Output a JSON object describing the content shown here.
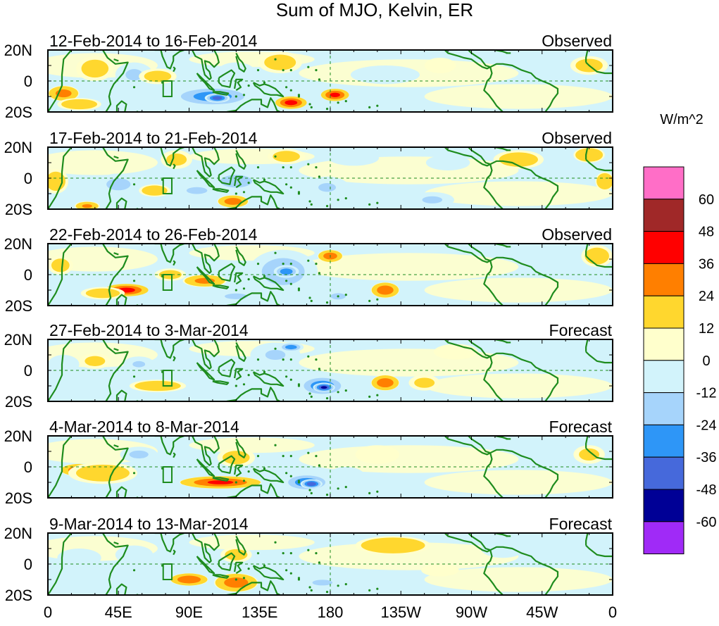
{
  "chart_data": {
    "type": "heatmap",
    "title": "Sum of MJO, Kelvin, ER",
    "units_label": "W/m^2",
    "y_ticks": [
      "20N",
      "0",
      "20S"
    ],
    "x_ticks": [
      "0",
      "45E",
      "90E",
      "135E",
      "180",
      "135W",
      "90W",
      "45W",
      "0"
    ],
    "x_range_deg": [
      0,
      360
    ],
    "y_range_deg": [
      -20,
      20
    ],
    "colorbar": {
      "levels": [
        60,
        48,
        36,
        24,
        12,
        0,
        -12,
        -24,
        -36,
        -48,
        -60
      ],
      "labels": [
        "60",
        "48",
        "36",
        "24",
        "12",
        "0",
        "-12",
        "-24",
        "-36",
        "-48",
        "-60"
      ],
      "colors": [
        "#ff6ec7",
        "#a02828",
        "#ff0000",
        "#ff7f00",
        "#ffd72e",
        "#ffffcc",
        "#d2f3fb",
        "#a6d4fb",
        "#2e96f7",
        "#4669db",
        "#000096",
        "#a02af7"
      ]
    },
    "colors": {
      "coast": "#1e8c1e",
      "dashed": "#1e8c1e",
      "background": "#d2f3fb"
    },
    "panels": [
      {
        "period": "12-Feb-2014 to 16-Feb-2014",
        "status": "Observed",
        "anomalies": [
          {
            "lon": 10,
            "lat": -8,
            "v": 28,
            "rx": 10,
            "ry": 5
          },
          {
            "lon": 20,
            "lat": -15,
            "v": 18,
            "rx": 14,
            "ry": 4
          },
          {
            "lon": 30,
            "lat": 8,
            "v": 14,
            "rx": 12,
            "ry": 8
          },
          {
            "lon": 55,
            "lat": 4,
            "v": -26,
            "rx": 12,
            "ry": 8
          },
          {
            "lon": 70,
            "lat": 3,
            "v": 14,
            "rx": 12,
            "ry": 5
          },
          {
            "lon": 105,
            "lat": -10,
            "v": -42,
            "rx": 28,
            "ry": 7
          },
          {
            "lon": 108,
            "lat": -11,
            "v": -55,
            "rx": 8,
            "ry": 3
          },
          {
            "lon": 120,
            "lat": 6,
            "v": -22,
            "rx": 12,
            "ry": 6
          },
          {
            "lon": 148,
            "lat": 12,
            "v": 14,
            "rx": 14,
            "ry": 7
          },
          {
            "lon": 155,
            "lat": -14,
            "v": 40,
            "rx": 10,
            "ry": 4
          },
          {
            "lon": 183,
            "lat": -9,
            "v": 38,
            "rx": 9,
            "ry": 4
          },
          {
            "lon": 215,
            "lat": 4,
            "v": -12,
            "rx": 22,
            "ry": 6
          },
          {
            "lon": 250,
            "lat": 10,
            "v": 10,
            "rx": 10,
            "ry": 5
          },
          {
            "lon": 345,
            "lat": 10,
            "v": 14,
            "rx": 12,
            "ry": 6
          }
        ]
      },
      {
        "period": "17-Feb-2014 to 21-Feb-2014",
        "status": "Observed",
        "anomalies": [
          {
            "lon": 5,
            "lat": -2,
            "v": 16,
            "rx": 8,
            "ry": 8
          },
          {
            "lon": 25,
            "lat": -18,
            "v": 24,
            "rx": 8,
            "ry": 3
          },
          {
            "lon": 45,
            "lat": -4,
            "v": -30,
            "rx": 14,
            "ry": 7
          },
          {
            "lon": 68,
            "lat": -8,
            "v": 18,
            "rx": 10,
            "ry": 4
          },
          {
            "lon": 82,
            "lat": 12,
            "v": 12,
            "rx": 10,
            "ry": 6
          },
          {
            "lon": 95,
            "lat": -8,
            "v": -30,
            "rx": 12,
            "ry": 4
          },
          {
            "lon": 120,
            "lat": -2,
            "v": -28,
            "rx": 20,
            "ry": 8
          },
          {
            "lon": 118,
            "lat": -15,
            "v": 30,
            "rx": 10,
            "ry": 4
          },
          {
            "lon": 152,
            "lat": 14,
            "v": 14,
            "rx": 12,
            "ry": 5
          },
          {
            "lon": 178,
            "lat": -6,
            "v": -24,
            "rx": 14,
            "ry": 7
          },
          {
            "lon": 195,
            "lat": 13,
            "v": -16,
            "rx": 16,
            "ry": 5
          },
          {
            "lon": 245,
            "lat": -14,
            "v": -26,
            "rx": 14,
            "ry": 5
          },
          {
            "lon": 255,
            "lat": 10,
            "v": -14,
            "rx": 14,
            "ry": 5
          },
          {
            "lon": 300,
            "lat": 12,
            "v": 16,
            "rx": 16,
            "ry": 6
          },
          {
            "lon": 345,
            "lat": 15,
            "v": 22,
            "rx": 10,
            "ry": 5
          },
          {
            "lon": 355,
            "lat": -2,
            "v": 22,
            "rx": 6,
            "ry": 6
          }
        ]
      },
      {
        "period": "22-Feb-2014 to 26-Feb-2014",
        "status": "Observed",
        "anomalies": [
          {
            "lon": 8,
            "lat": 6,
            "v": 14,
            "rx": 8,
            "ry": 6
          },
          {
            "lon": 20,
            "lat": -5,
            "v": -14,
            "rx": 14,
            "ry": 5
          },
          {
            "lon": 50,
            "lat": -10,
            "v": 40,
            "rx": 14,
            "ry": 4
          },
          {
            "lon": 35,
            "lat": -12,
            "v": 16,
            "rx": 14,
            "ry": 4
          },
          {
            "lon": 78,
            "lat": 0,
            "v": 14,
            "rx": 10,
            "ry": 4
          },
          {
            "lon": 100,
            "lat": -4,
            "v": 26,
            "rx": 14,
            "ry": 4
          },
          {
            "lon": 120,
            "lat": -14,
            "v": -26,
            "rx": 16,
            "ry": 4
          },
          {
            "lon": 150,
            "lat": 2,
            "v": -34,
            "rx": 22,
            "ry": 14
          },
          {
            "lon": 152,
            "lat": 2,
            "v": -46,
            "rx": 8,
            "ry": 4
          },
          {
            "lon": 180,
            "lat": 12,
            "v": 30,
            "rx": 8,
            "ry": 4
          },
          {
            "lon": 185,
            "lat": -14,
            "v": -24,
            "rx": 12,
            "ry": 5
          },
          {
            "lon": 215,
            "lat": -10,
            "v": 32,
            "rx": 9,
            "ry": 5
          },
          {
            "lon": 350,
            "lat": 12,
            "v": 16,
            "rx": 10,
            "ry": 7
          }
        ]
      },
      {
        "period": "27-Feb-2014 to 3-Mar-2014",
        "status": "Forecast",
        "anomalies": [
          {
            "lon": 10,
            "lat": 4,
            "v": -12,
            "rx": 10,
            "ry": 6
          },
          {
            "lon": 30,
            "lat": 6,
            "v": 12,
            "rx": 10,
            "ry": 5
          },
          {
            "lon": 58,
            "lat": 4,
            "v": -24,
            "rx": 10,
            "ry": 5
          },
          {
            "lon": 70,
            "lat": -10,
            "v": 18,
            "rx": 18,
            "ry": 4
          },
          {
            "lon": 105,
            "lat": -4,
            "v": -14,
            "rx": 16,
            "ry": 5
          },
          {
            "lon": 145,
            "lat": 10,
            "v": -24,
            "rx": 16,
            "ry": 8
          },
          {
            "lon": 155,
            "lat": 15,
            "v": -44,
            "rx": 8,
            "ry": 3
          },
          {
            "lon": 175,
            "lat": -10,
            "v": -44,
            "rx": 16,
            "ry": 7
          },
          {
            "lon": 176,
            "lat": -11,
            "v": -62,
            "rx": 7,
            "ry": 3
          },
          {
            "lon": 215,
            "lat": -8,
            "v": 32,
            "rx": 9,
            "ry": 5
          },
          {
            "lon": 240,
            "lat": -8,
            "v": 12,
            "rx": 10,
            "ry": 5
          },
          {
            "lon": 260,
            "lat": 12,
            "v": 10,
            "rx": 14,
            "ry": 5
          }
        ]
      },
      {
        "period": "4-Mar-2014 to 8-Mar-2014",
        "status": "Forecast",
        "anomalies": [
          {
            "lon": 20,
            "lat": -2,
            "v": 32,
            "rx": 12,
            "ry": 4
          },
          {
            "lon": 35,
            "lat": -4,
            "v": 16,
            "rx": 22,
            "ry": 7
          },
          {
            "lon": 58,
            "lat": 8,
            "v": -28,
            "rx": 12,
            "ry": 5
          },
          {
            "lon": 110,
            "lat": -10,
            "v": 36,
            "rx": 26,
            "ry": 4
          },
          {
            "lon": 120,
            "lat": 6,
            "v": 14,
            "rx": 12,
            "ry": 6
          },
          {
            "lon": 165,
            "lat": -10,
            "v": -44,
            "rx": 16,
            "ry": 6
          },
          {
            "lon": 168,
            "lat": -11,
            "v": -58,
            "rx": 7,
            "ry": 3
          },
          {
            "lon": 190,
            "lat": -6,
            "v": -14,
            "rx": 12,
            "ry": 6
          },
          {
            "lon": 210,
            "lat": 8,
            "v": 10,
            "rx": 14,
            "ry": 6
          },
          {
            "lon": 345,
            "lat": 8,
            "v": 12,
            "rx": 10,
            "ry": 6
          }
        ]
      },
      {
        "period": "9-Mar-2014 to 13-Mar-2014",
        "status": "Forecast",
        "anomalies": [
          {
            "lon": 20,
            "lat": 4,
            "v": -14,
            "rx": 14,
            "ry": 6
          },
          {
            "lon": 55,
            "lat": 6,
            "v": -18,
            "rx": 12,
            "ry": 6
          },
          {
            "lon": 90,
            "lat": -10,
            "v": 34,
            "rx": 12,
            "ry": 4
          },
          {
            "lon": 120,
            "lat": -12,
            "v": 30,
            "rx": 14,
            "ry": 6
          },
          {
            "lon": 120,
            "lat": 6,
            "v": 14,
            "rx": 10,
            "ry": 5
          },
          {
            "lon": 175,
            "lat": -12,
            "v": -26,
            "rx": 14,
            "ry": 4
          },
          {
            "lon": 220,
            "lat": 12,
            "v": 20,
            "rx": 24,
            "ry": 6
          },
          {
            "lon": 250,
            "lat": -4,
            "v": 10,
            "rx": 12,
            "ry": 4
          },
          {
            "lon": 290,
            "lat": 10,
            "v": -14,
            "rx": 14,
            "ry": 6
          },
          {
            "lon": 320,
            "lat": 14,
            "v": -18,
            "rx": 12,
            "ry": 5
          }
        ]
      }
    ]
  }
}
